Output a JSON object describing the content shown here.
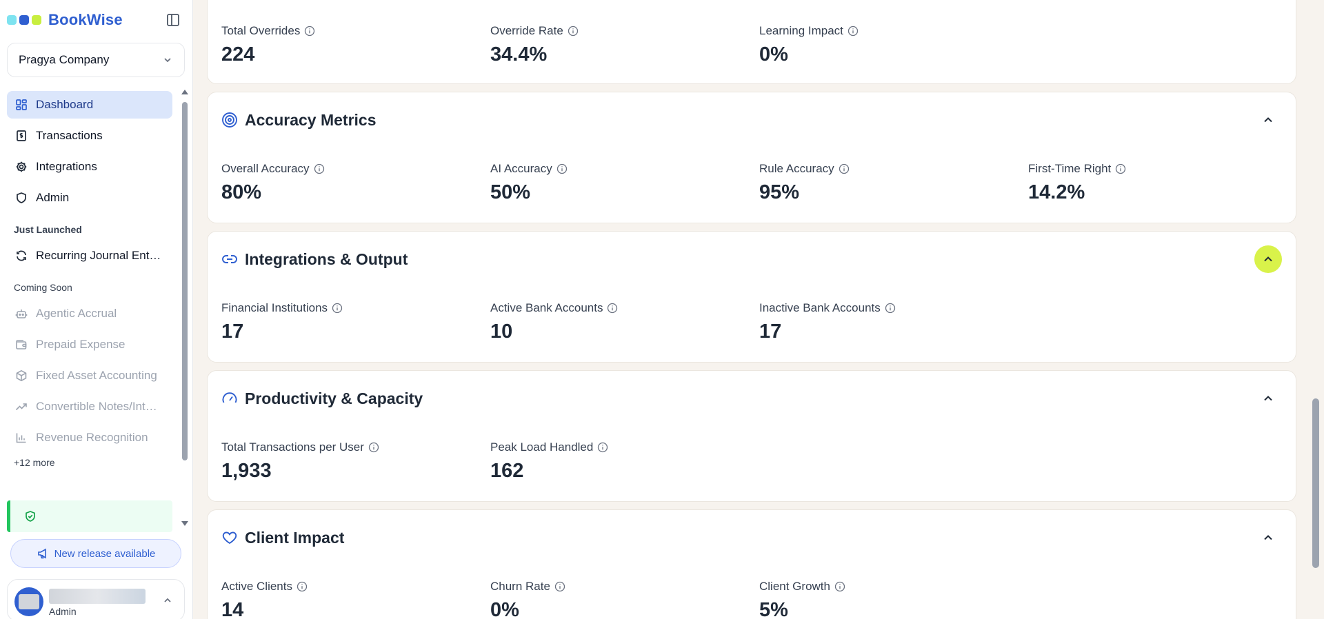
{
  "brand": {
    "name": "BookWise",
    "dot_colors": [
      "#7ee3f0",
      "#2f5fd0",
      "#c8ee3f"
    ]
  },
  "company_selector": {
    "name": "Pragya Company"
  },
  "nav": {
    "items": [
      {
        "label": "Dashboard",
        "icon": "dashboard-icon"
      },
      {
        "label": "Transactions",
        "icon": "receipt-icon"
      },
      {
        "label": "Integrations",
        "icon": "gear-icon"
      },
      {
        "label": "Admin",
        "icon": "shield-icon"
      }
    ],
    "just_launched_title": "Just Launched",
    "just_launched": [
      {
        "label": "Recurring Journal Ent…",
        "icon": "refresh-icon"
      }
    ],
    "coming_soon_title": "Coming Soon",
    "coming_soon": [
      {
        "label": "Agentic Accrual",
        "icon": "robot-icon"
      },
      {
        "label": "Prepaid Expense",
        "icon": "wallet-icon"
      },
      {
        "label": "Fixed Asset Accounting",
        "icon": "box-icon"
      },
      {
        "label": "Convertible Notes/Int…",
        "icon": "trend-up-icon"
      },
      {
        "label": "Revenue Recognition",
        "icon": "bar-chart-icon"
      }
    ],
    "more_label": "+12 more"
  },
  "release_button": {
    "label": "New release available"
  },
  "user": {
    "role": "Admin"
  },
  "sections": [
    {
      "metrics": [
        {
          "label": "Total Overrides",
          "value": "224"
        },
        {
          "label": "Override Rate",
          "value": "34.4%"
        },
        {
          "label": "Learning Impact",
          "value": "0%"
        }
      ]
    },
    {
      "title": "Accuracy Metrics",
      "icon": "target-icon",
      "metrics": [
        {
          "label": "Overall Accuracy",
          "value": "80%"
        },
        {
          "label": "AI Accuracy",
          "value": "50%"
        },
        {
          "label": "Rule Accuracy",
          "value": "95%"
        },
        {
          "label": "First-Time Right",
          "value": "14.2%"
        }
      ]
    },
    {
      "title": "Integrations & Output",
      "icon": "link-icon",
      "metrics": [
        {
          "label": "Financial Institutions",
          "value": "17"
        },
        {
          "label": "Active Bank Accounts",
          "value": "10"
        },
        {
          "label": "Inactive Bank Accounts",
          "value": "17"
        }
      ]
    },
    {
      "title": "Productivity & Capacity",
      "icon": "gauge-icon",
      "metrics": [
        {
          "label": "Total Transactions per User",
          "value": "1,933"
        },
        {
          "label": "Peak Load Handled",
          "value": "162"
        }
      ]
    },
    {
      "title": "Client Impact",
      "icon": "heart-icon",
      "metrics": [
        {
          "label": "Active Clients",
          "value": "14"
        },
        {
          "label": "Churn Rate",
          "value": "0%"
        },
        {
          "label": "Client Growth",
          "value": "5%"
        }
      ]
    }
  ],
  "colors": {
    "accent": "#2f5fd0",
    "highlight": "#d9f24a",
    "active_nav": "#dbe6fb",
    "success": "#22c55e"
  }
}
